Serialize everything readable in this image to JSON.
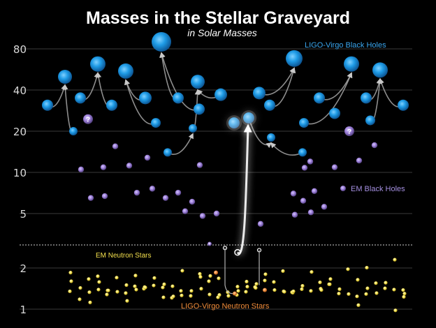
{
  "chart_data": {
    "type": "scatter",
    "title": "Masses in the Stellar Graveyard",
    "subtitle": "in Solar Masses",
    "yscale": "log",
    "ylim": [
      0.9,
      110
    ],
    "yticks": [
      1,
      2,
      5,
      10,
      20,
      40,
      80
    ],
    "grid": true,
    "colors": {
      "background": "#000000",
      "ligo_bh": "#1e9be6",
      "em_bh": "#9b7ed6",
      "em_ns": "#f4e04d",
      "ligo_ns": "#f08c3a",
      "label_ligo_bh": "#3aa7f0",
      "label_em_bh": "#a48fe0",
      "label_em_ns": "#f4e04d",
      "label_ligo_ns": "#f08c3a",
      "arrow": "#b0b0b0",
      "grid": "#3a3a3a",
      "tick": "#d8d8d8"
    },
    "series_labels": {
      "ligo_bh": "LIGO-Virgo Black Holes",
      "em_bh": "EM Black Holes",
      "em_ns": "EM Neutron Stars",
      "ligo_ns": "LIGO-Virgo Neutron Stars",
      "unknown": "?"
    },
    "ligo_mergers": [
      {
        "p1": 31,
        "p2": 20,
        "final": 50
      },
      {
        "p1": 35,
        "p2": 29,
        "final": 62
      },
      {
        "p1": 33,
        "p2": 25,
        "final": 55
      },
      {
        "p1": 38,
        "p2": 23,
        "final": 90
      },
      {
        "p1": 31,
        "p2": 21,
        "final": 46
      },
      {
        "p1": 37,
        "p2": 29,
        "final": 35
      },
      {
        "p1": 12,
        "p2": 8,
        "final": 20
      },
      {
        "p1": 9,
        "p2": 15,
        "final": 38
      },
      {
        "p1": 38,
        "p2": 31,
        "final": 68
      },
      {
        "p1": 21,
        "p2": 17,
        "final": 17
      },
      {
        "p1": 10,
        "p2": 7,
        "final": 34
      },
      {
        "p1": 28,
        "p2": 21,
        "final": 48
      },
      {
        "p1": 27,
        "p2": 24,
        "final": 56
      },
      {
        "p1": 35,
        "p2": 31,
        "final": 34
      },
      {
        "p1": 24,
        "p2": 27,
        "final": 30
      },
      {
        "p1": 1.46,
        "p2": 1.27,
        "final": 2.8
      }
    ],
    "ligo_bh_points": [
      {
        "x": 68,
        "m": 31,
        "r": 8
      },
      {
        "x": 105,
        "m": 20,
        "r": 6
      },
      {
        "x": 93,
        "m": 50,
        "r": 10
      },
      {
        "x": 115,
        "m": 35,
        "r": 8
      },
      {
        "x": 160,
        "m": 31,
        "r": 8
      },
      {
        "x": 140,
        "m": 62,
        "r": 11
      },
      {
        "x": 208,
        "m": 35,
        "r": 9
      },
      {
        "x": 223,
        "m": 23,
        "r": 7
      },
      {
        "x": 180,
        "m": 55,
        "r": 11
      },
      {
        "x": 255,
        "m": 35,
        "r": 8
      },
      {
        "x": 285,
        "m": 29,
        "r": 8
      },
      {
        "x": 231,
        "m": 90,
        "r": 14
      },
      {
        "x": 276,
        "m": 21,
        "r": 6
      },
      {
        "x": 316,
        "m": 37,
        "r": 9
      },
      {
        "x": 283,
        "m": 46,
        "r": 10
      },
      {
        "x": 335,
        "m": 23,
        "r": 8
      },
      {
        "x": 356,
        "m": 25,
        "r": 8
      },
      {
        "x": 371,
        "m": 38,
        "r": 9
      },
      {
        "x": 388,
        "m": 18,
        "r": 6
      },
      {
        "x": 386,
        "m": 31,
        "r": 8
      },
      {
        "x": 421,
        "m": 68,
        "r": 12
      },
      {
        "x": 435,
        "m": 23,
        "r": 7
      },
      {
        "x": 457,
        "m": 35,
        "r": 8
      },
      {
        "x": 479,
        "m": 27,
        "r": 8
      },
      {
        "x": 503,
        "m": 62,
        "r": 11
      },
      {
        "x": 524,
        "m": 35,
        "r": 8
      },
      {
        "x": 530,
        "m": 24,
        "r": 7
      },
      {
        "x": 544,
        "m": 56,
        "r": 11
      },
      {
        "x": 577,
        "m": 31,
        "r": 8
      },
      {
        "x": 240,
        "m": 14,
        "r": 6
      },
      {
        "x": 433,
        "m": 14,
        "r": 6
      }
    ],
    "em_bh_points": [
      {
        "x": 116,
        "m": 10.5
      },
      {
        "x": 130,
        "m": 6.5
      },
      {
        "x": 150,
        "m": 6.7
      },
      {
        "x": 148,
        "m": 10.9
      },
      {
        "x": 165,
        "m": 15.5
      },
      {
        "x": 185,
        "m": 11.2
      },
      {
        "x": 196,
        "m": 7.1
      },
      {
        "x": 211,
        "m": 12.8
      },
      {
        "x": 218,
        "m": 7.6
      },
      {
        "x": 237,
        "m": 6.5
      },
      {
        "x": 255,
        "m": 7.1
      },
      {
        "x": 265,
        "m": 5.2
      },
      {
        "x": 275,
        "m": 6.1
      },
      {
        "x": 290,
        "m": 4.8
      },
      {
        "x": 310,
        "m": 5.0
      },
      {
        "x": 373,
        "m": 4.2
      },
      {
        "x": 420,
        "m": 7.0
      },
      {
        "x": 422,
        "m": 4.9
      },
      {
        "x": 434,
        "m": 6.2
      },
      {
        "x": 436,
        "m": 10.8
      },
      {
        "x": 445,
        "m": 5.1
      },
      {
        "x": 450,
        "m": 7.3
      },
      {
        "x": 464,
        "m": 5.6
      },
      {
        "x": 479,
        "m": 10.9
      },
      {
        "x": 514,
        "m": 12.2
      },
      {
        "x": 536,
        "m": 15.8
      },
      {
        "x": 444,
        "m": 12.0
      },
      {
        "x": 286,
        "m": 11.3
      }
    ],
    "unknown_points": [
      {
        "x": 126,
        "m": 24.5,
        "r": 7
      },
      {
        "x": 500,
        "m": 20,
        "r": 7
      },
      {
        "x": 300,
        "m": 3.0,
        "r": 3
      }
    ],
    "em_ns_masses": [
      1.35,
      1.28,
      1.41,
      1.36,
      1.22,
      1.45,
      1.33,
      1.52,
      1.29,
      1.38,
      1.74,
      1.47,
      1.21,
      1.6,
      1.34,
      1.9,
      1.57,
      1.24,
      1.39,
      1.66,
      1.31,
      1.44,
      1.81,
      1.27,
      1.58,
      1.36,
      1.96,
      1.42,
      1.18,
      1.7,
      1.49,
      1.25,
      1.33,
      1.62,
      1.4,
      1.3,
      1.55,
      1.85,
      1.37,
      1.45,
      1.26,
      1.68,
      1.43,
      1.32,
      1.52,
      2.01,
      1.23,
      1.39,
      1.76,
      1.47,
      1.28,
      1.59,
      1.35,
      1.41,
      1.64,
      2.3,
      1.33,
      1.5,
      1.22,
      1.72,
      1.46,
      1.38,
      1.87,
      1.29,
      1.56,
      1.43,
      1.34,
      1.69,
      1.36,
      1.25,
      1.8,
      1.48,
      1.4,
      1.31,
      1.6,
      1.37,
      1.44,
      1.91,
      1.27,
      1.53,
      1.35,
      1.66,
      1.42,
      1.3,
      1.58,
      1.39,
      1.24,
      1.75,
      1.46,
      1.34,
      1.38,
      1.07,
      0.98,
      1.12,
      1.15,
      1.52,
      1.41,
      1.36
    ]
  }
}
